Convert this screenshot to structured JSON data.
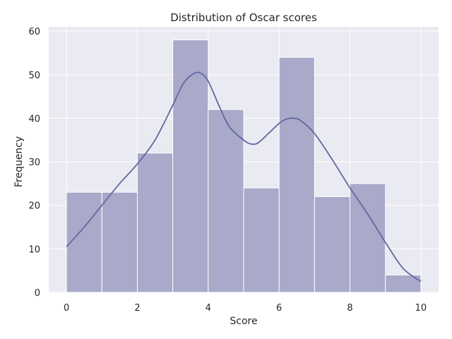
{
  "chart_data": {
    "type": "bar",
    "title": "Distribution of Oscar scores",
    "xlabel": "Score",
    "ylabel": "Frequency",
    "bin_edges": [
      0,
      1,
      2,
      3,
      4,
      5,
      6,
      7,
      8,
      9,
      10
    ],
    "counts": [
      23,
      23,
      32,
      58,
      42,
      24,
      54,
      22,
      25,
      4
    ],
    "xlim": [
      -0.5,
      10.5
    ],
    "ylim": [
      0,
      61
    ],
    "xticks": [
      0,
      2,
      4,
      6,
      8,
      10
    ],
    "yticks": [
      0,
      10,
      20,
      30,
      40,
      50,
      60
    ],
    "grid": true,
    "kde": {
      "x": [
        0,
        0.5,
        1,
        1.5,
        2,
        2.5,
        3,
        3.3,
        3.6,
        3.8,
        4,
        4.3,
        4.6,
        5,
        5.2,
        5.4,
        5.7,
        6,
        6.2,
        6.4,
        6.6,
        7,
        7.5,
        8,
        8.5,
        9,
        9.5,
        10
      ],
      "y": [
        10.5,
        15,
        20,
        25,
        29.5,
        35,
        43,
        48,
        50.3,
        50.3,
        48.5,
        43,
        38,
        35,
        34.1,
        34.3,
        36.5,
        38.8,
        39.8,
        40,
        39.5,
        36.5,
        30.5,
        24,
        18,
        11.5,
        5.5,
        2.5
      ]
    },
    "colors": {
      "background": "#eaeaf2",
      "grid": "#ffffff",
      "bar_fill": "#a9a9ca",
      "bar_edge": "#ffffff",
      "kde_line": "#6666a0"
    }
  }
}
